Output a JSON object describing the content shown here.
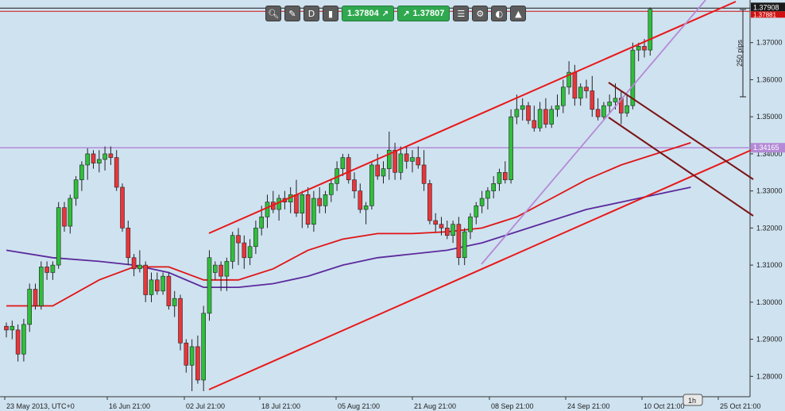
{
  "toolbar": {
    "bid": "1.37804",
    "ask": "1.37807",
    "icons": [
      "zoom-icon",
      "crosshair-icon",
      "timeframe-d1-icon",
      "candles-icon",
      "trade-icon",
      "list-icon",
      "gear-icon",
      "theme-icon",
      "screenshot-icon"
    ]
  },
  "price_labels": {
    "current": "1.37908",
    "current_alt": "1.37881",
    "horizontal_line": "1.34165"
  },
  "measure_label": "250 pips",
  "timeframe": "1h",
  "colors": {
    "bg": "#cfe2f0",
    "up": "#2fbf3a",
    "down": "#e8363a",
    "channel": "#e81818",
    "dark_channel": "#7a1414",
    "ma_red": "#e01414",
    "ma_purple": "#5b2a9c",
    "hline": "#b48ad6"
  },
  "chart_data": {
    "type": "candlestick",
    "symbol_note": "UTC+0",
    "x_ticks": [
      "23 May 2013, UTC+0",
      "16 Jun 21:00",
      "02 Jul 21:00",
      "18 Jul 21:00",
      "05 Aug 21:00",
      "21 Aug 21:00",
      "08 Sep 21:00",
      "24 Sep 21:00",
      "10 Oct 21:00",
      "25 Oct 21:00"
    ],
    "y_ticks": [
      "1.37000",
      "1.36000",
      "1.35000",
      "1.34000",
      "1.33000",
      "1.32000",
      "1.31000",
      "1.30000",
      "1.29000",
      "1.28000"
    ],
    "ylim": [
      1.2745,
      1.3815
    ],
    "candles": [
      [
        1.2935,
        1.2945,
        1.2905,
        1.2925
      ],
      [
        1.2925,
        1.295,
        1.29,
        1.2935
      ],
      [
        1.2925,
        1.294,
        1.284,
        1.286
      ],
      [
        1.286,
        1.2955,
        1.284,
        1.294
      ],
      [
        1.294,
        1.305,
        1.292,
        1.3035
      ],
      [
        1.3035,
        1.305,
        1.298,
        1.299
      ],
      [
        1.299,
        1.311,
        1.298,
        1.3095
      ],
      [
        1.3095,
        1.311,
        1.306,
        1.308
      ],
      [
        1.308,
        1.311,
        1.306,
        1.31
      ],
      [
        1.31,
        1.327,
        1.309,
        1.3255
      ],
      [
        1.3255,
        1.327,
        1.319,
        1.3205
      ],
      [
        1.3205,
        1.329,
        1.3185,
        1.328
      ],
      [
        1.328,
        1.334,
        1.326,
        1.333
      ],
      [
        1.333,
        1.338,
        1.33,
        1.337
      ],
      [
        1.337,
        1.3415,
        1.333,
        1.34
      ],
      [
        1.34,
        1.341,
        1.336,
        1.3375
      ],
      [
        1.3375,
        1.341,
        1.335,
        1.3385
      ],
      [
        1.3385,
        1.342,
        1.3355,
        1.34
      ],
      [
        1.34,
        1.342,
        1.337,
        1.339
      ],
      [
        1.339,
        1.341,
        1.33,
        1.331
      ],
      [
        1.331,
        1.332,
        1.319,
        1.32
      ],
      [
        1.32,
        1.322,
        1.31,
        1.312
      ],
      [
        1.312,
        1.313,
        1.307,
        1.309
      ],
      [
        1.309,
        1.314,
        1.308,
        1.31
      ],
      [
        1.31,
        1.311,
        1.3,
        1.302
      ],
      [
        1.302,
        1.308,
        1.3,
        1.306
      ],
      [
        1.306,
        1.308,
        1.302,
        1.303
      ],
      [
        1.303,
        1.308,
        1.302,
        1.307
      ],
      [
        1.307,
        1.308,
        1.298,
        1.299
      ],
      [
        1.299,
        1.303,
        1.296,
        1.301
      ],
      [
        1.301,
        1.302,
        1.287,
        1.289
      ],
      [
        1.289,
        1.29,
        1.281,
        1.283
      ],
      [
        1.283,
        1.29,
        1.276,
        1.288
      ],
      [
        1.288,
        1.291,
        1.278,
        1.279
      ],
      [
        1.279,
        1.299,
        1.276,
        1.297
      ],
      [
        1.297,
        1.314,
        1.295,
        1.312
      ],
      [
        1.308,
        1.311,
        1.306,
        1.31
      ],
      [
        1.31,
        1.311,
        1.303,
        1.307
      ],
      [
        1.307,
        1.312,
        1.303,
        1.311
      ],
      [
        1.311,
        1.319,
        1.309,
        1.318
      ],
      [
        1.318,
        1.32,
        1.31,
        1.316
      ],
      [
        1.316,
        1.318,
        1.309,
        1.312
      ],
      [
        1.312,
        1.317,
        1.31,
        1.315
      ],
      [
        1.315,
        1.322,
        1.313,
        1.32
      ],
      [
        1.32,
        1.326,
        1.318,
        1.323
      ],
      [
        1.323,
        1.329,
        1.32,
        1.327
      ],
      [
        1.327,
        1.33,
        1.324,
        1.325
      ],
      [
        1.325,
        1.329,
        1.322,
        1.328
      ],
      [
        1.328,
        1.33,
        1.325,
        1.327
      ],
      [
        1.327,
        1.331,
        1.324,
        1.329
      ],
      [
        1.329,
        1.333,
        1.323,
        1.324
      ],
      [
        1.324,
        1.33,
        1.32,
        1.329
      ],
      [
        1.329,
        1.331,
        1.32,
        1.321
      ],
      [
        1.321,
        1.33,
        1.319,
        1.328
      ],
      [
        1.328,
        1.331,
        1.324,
        1.326
      ],
      [
        1.326,
        1.33,
        1.324,
        1.329
      ],
      [
        1.329,
        1.333,
        1.327,
        1.332
      ],
      [
        1.332,
        1.338,
        1.33,
        1.336
      ],
      [
        1.336,
        1.34,
        1.334,
        1.339
      ],
      [
        1.339,
        1.34,
        1.332,
        1.333
      ],
      [
        1.333,
        1.335,
        1.328,
        1.33
      ],
      [
        1.33,
        1.332,
        1.324,
        1.325
      ],
      [
        1.325,
        1.327,
        1.321,
        1.326
      ],
      [
        1.326,
        1.338,
        1.325,
        1.337
      ],
      [
        1.337,
        1.34,
        1.333,
        1.334
      ],
      [
        1.334,
        1.338,
        1.332,
        1.336
      ],
      [
        1.336,
        1.346,
        1.333,
        1.341
      ],
      [
        1.341,
        1.343,
        1.333,
        1.335
      ],
      [
        1.335,
        1.342,
        1.333,
        1.34
      ],
      [
        1.34,
        1.342,
        1.336,
        1.338
      ],
      [
        1.338,
        1.341,
        1.335,
        1.339
      ],
      [
        1.339,
        1.342,
        1.336,
        1.337
      ],
      [
        1.337,
        1.341,
        1.33,
        1.332
      ],
      [
        1.332,
        1.333,
        1.321,
        1.322
      ],
      [
        1.322,
        1.324,
        1.319,
        1.321
      ],
      [
        1.321,
        1.323,
        1.318,
        1.32
      ],
      [
        1.32,
        1.322,
        1.317,
        1.318
      ],
      [
        1.318,
        1.322,
        1.316,
        1.321
      ],
      [
        1.321,
        1.323,
        1.31,
        1.312
      ],
      [
        1.312,
        1.32,
        1.31,
        1.319
      ],
      [
        1.319,
        1.324,
        1.317,
        1.323
      ],
      [
        1.323,
        1.327,
        1.321,
        1.326
      ],
      [
        1.326,
        1.33,
        1.324,
        1.328
      ],
      [
        1.328,
        1.331,
        1.325,
        1.33
      ],
      [
        1.33,
        1.334,
        1.328,
        1.332
      ],
      [
        1.332,
        1.336,
        1.33,
        1.335
      ],
      [
        1.335,
        1.338,
        1.332,
        1.333
      ],
      [
        1.333,
        1.352,
        1.332,
        1.35
      ],
      [
        1.35,
        1.356,
        1.348,
        1.352
      ],
      [
        1.352,
        1.355,
        1.349,
        1.353
      ],
      [
        1.353,
        1.354,
        1.348,
        1.349
      ],
      [
        1.349,
        1.353,
        1.346,
        1.347
      ],
      [
        1.347,
        1.354,
        1.346,
        1.352
      ],
      [
        1.352,
        1.355,
        1.347,
        1.348
      ],
      [
        1.348,
        1.353,
        1.347,
        1.352
      ],
      [
        1.352,
        1.356,
        1.35,
        1.353
      ],
      [
        1.353,
        1.36,
        1.351,
        1.358
      ],
      [
        1.358,
        1.365,
        1.356,
        1.362
      ],
      [
        1.362,
        1.364,
        1.353,
        1.355
      ],
      [
        1.355,
        1.359,
        1.353,
        1.358
      ],
      [
        1.358,
        1.36,
        1.355,
        1.357
      ],
      [
        1.357,
        1.361,
        1.35,
        1.352
      ],
      [
        1.352,
        1.355,
        1.349,
        1.35
      ],
      [
        1.35,
        1.354,
        1.349,
        1.353
      ],
      [
        1.353,
        1.356,
        1.351,
        1.354
      ],
      [
        1.354,
        1.359,
        1.352,
        1.355
      ],
      [
        1.355,
        1.357,
        1.348,
        1.351
      ],
      [
        1.351,
        1.356,
        1.35,
        1.353
      ],
      [
        1.353,
        1.37,
        1.352,
        1.368
      ],
      [
        1.368,
        1.37,
        1.365,
        1.369
      ],
      [
        1.369,
        1.371,
        1.366,
        1.368
      ],
      [
        1.368,
        1.3795,
        1.3665,
        1.379
      ]
    ],
    "lines": {
      "ma_red": [
        [
          0,
          1.299
        ],
        [
          8,
          1.299
        ],
        [
          16,
          1.306
        ],
        [
          22,
          1.3095
        ],
        [
          28,
          1.3095
        ],
        [
          34,
          1.306
        ],
        [
          40,
          1.306
        ],
        [
          46,
          1.309
        ],
        [
          52,
          1.314
        ],
        [
          58,
          1.317
        ],
        [
          64,
          1.3185
        ],
        [
          70,
          1.3185
        ],
        [
          76,
          1.319
        ],
        [
          82,
          1.32
        ],
        [
          88,
          1.323
        ],
        [
          94,
          1.328
        ],
        [
          100,
          1.333
        ],
        [
          106,
          1.337
        ],
        [
          112,
          1.34
        ],
        [
          118,
          1.343
        ]
      ],
      "ma_purple": [
        [
          0,
          1.314
        ],
        [
          8,
          1.312
        ],
        [
          16,
          1.311
        ],
        [
          22,
          1.31
        ],
        [
          28,
          1.308
        ],
        [
          34,
          1.304
        ],
        [
          40,
          1.304
        ],
        [
          46,
          1.305
        ],
        [
          52,
          1.307
        ],
        [
          58,
          1.31
        ],
        [
          64,
          1.312
        ],
        [
          70,
          1.313
        ],
        [
          76,
          1.314
        ],
        [
          82,
          1.316
        ],
        [
          88,
          1.319
        ],
        [
          94,
          1.322
        ],
        [
          100,
          1.325
        ],
        [
          106,
          1.327
        ],
        [
          112,
          1.329
        ],
        [
          118,
          1.331
        ]
      ]
    }
  }
}
